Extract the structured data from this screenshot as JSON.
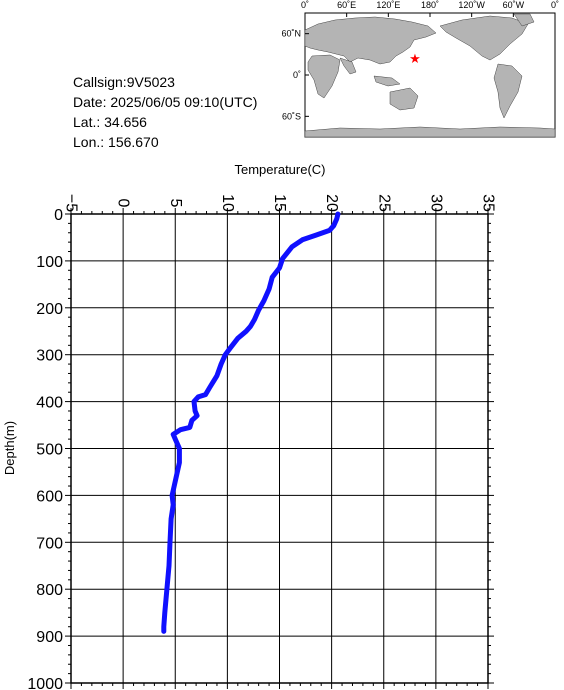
{
  "info": {
    "callsign": "Callsign:9V5023",
    "date": "Date:  2025/06/05 09:10(UTC)",
    "lat": "Lat.:  34.656",
    "lon": "Lon.:  156.670"
  },
  "map": {
    "lon_labels": [
      "0˚",
      "60˚E",
      "120˚E",
      "180˚",
      "120˚W",
      "60˚W",
      "0˚"
    ],
    "lat_labels": [
      "60˚N",
      "0˚",
      "60˚S"
    ],
    "marker": {
      "lat": 34.656,
      "lon": 156.67,
      "symbol": "★"
    },
    "colors": {
      "ocean": "#ffffff",
      "land": "#b4b4b4",
      "marker": "#ff0000"
    }
  },
  "chart_data": {
    "type": "line",
    "xlabel": "Temperature(C)",
    "ylabel": "Depth(m)",
    "xlim": [
      -5,
      35
    ],
    "ylim": [
      0,
      1000
    ],
    "y_inverted": true,
    "x_ticks": [
      -5,
      0,
      5,
      10,
      15,
      20,
      25,
      30,
      35
    ],
    "y_ticks": [
      0,
      100,
      200,
      300,
      400,
      500,
      600,
      700,
      800,
      900,
      1000
    ],
    "grid": true,
    "series": [
      {
        "color": "#1010ff",
        "points": [
          [
            20.6,
            0
          ],
          [
            20.5,
            10
          ],
          [
            20.2,
            25
          ],
          [
            19.8,
            35
          ],
          [
            18.5,
            45
          ],
          [
            17.2,
            55
          ],
          [
            16.2,
            70
          ],
          [
            15.3,
            95
          ],
          [
            15.0,
            115
          ],
          [
            14.3,
            135
          ],
          [
            14.0,
            160
          ],
          [
            13.5,
            185
          ],
          [
            13.0,
            205
          ],
          [
            12.6,
            225
          ],
          [
            12.2,
            240
          ],
          [
            11.8,
            250
          ],
          [
            11.0,
            265
          ],
          [
            10.3,
            285
          ],
          [
            9.8,
            300
          ],
          [
            9.4,
            320
          ],
          [
            9.0,
            345
          ],
          [
            8.3,
            370
          ],
          [
            7.9,
            385
          ],
          [
            7.2,
            390
          ],
          [
            6.8,
            400
          ],
          [
            6.9,
            420
          ],
          [
            7.1,
            430
          ],
          [
            6.6,
            440
          ],
          [
            6.4,
            455
          ],
          [
            5.5,
            460
          ],
          [
            4.8,
            470
          ],
          [
            5.1,
            485
          ],
          [
            5.4,
            500
          ],
          [
            5.4,
            530
          ],
          [
            5.1,
            560
          ],
          [
            4.9,
            580
          ],
          [
            4.7,
            600
          ],
          [
            4.8,
            620
          ],
          [
            4.6,
            650
          ],
          [
            4.5,
            700
          ],
          [
            4.4,
            750
          ],
          [
            4.2,
            800
          ],
          [
            4.0,
            850
          ],
          [
            3.9,
            880
          ],
          [
            3.9,
            890
          ]
        ]
      }
    ]
  }
}
